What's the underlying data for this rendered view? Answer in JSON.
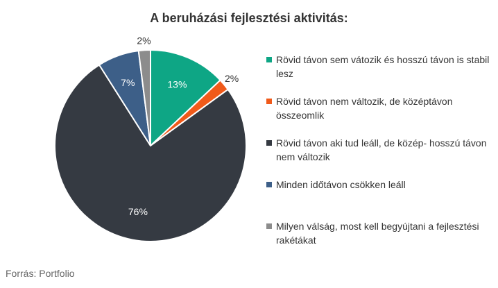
{
  "title": "A beruházási fejlesztési aktivitás:",
  "source": "Forrás: Portfolio",
  "chart_data": {
    "type": "pie",
    "title": "A beruházási fejlesztési aktivitás:",
    "series": [
      {
        "name": "Rövid távon sem vátozik és hosszú távon is stabil lesz",
        "value": 13,
        "label": "13%",
        "color": "#0ea685"
      },
      {
        "name": "Rövid távon nem változik, de középtávon összeomlik",
        "value": 2,
        "label": "2%",
        "color": "#f05a1a"
      },
      {
        "name": "Rövid távon aki tud leáll, de közép- hosszú távon nem változik",
        "value": 76,
        "label": "76%",
        "color": "#353a42"
      },
      {
        "name": "Minden időtávon csökken leáll",
        "value": 7,
        "label": "7%",
        "color": "#3d5f88"
      },
      {
        "name": "Milyen válság, most kell begyújtani a fejlesztési rakétákat",
        "value": 2,
        "label": "2%",
        "color": "#8c8c8c"
      }
    ],
    "legend_position": "right"
  }
}
